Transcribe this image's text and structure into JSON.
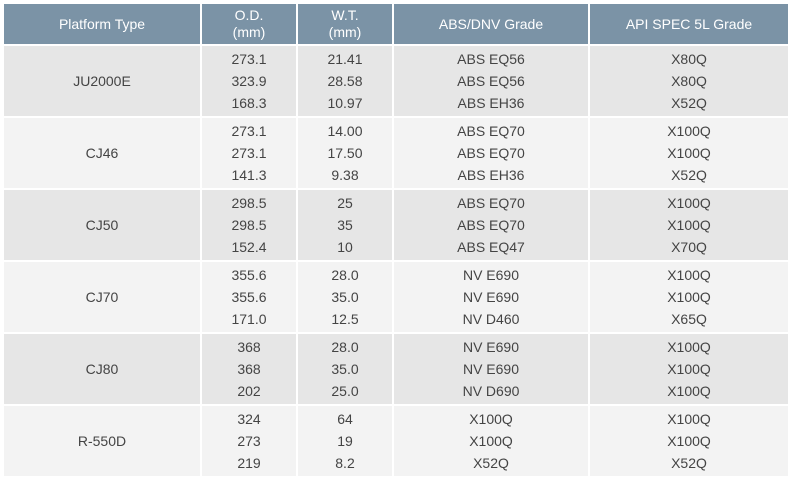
{
  "headers": {
    "platform": "Platform Type",
    "od": [
      "O.D.",
      "(mm)"
    ],
    "wt": [
      "W.T.",
      "(mm)"
    ],
    "abs": "ABS/DNV Grade",
    "api": "API SPEC 5L Grade"
  },
  "groups": [
    {
      "platform": "JU2000E",
      "rows": [
        {
          "od": "273.1",
          "wt": "21.41",
          "abs": "ABS EQ56",
          "api": "X80Q"
        },
        {
          "od": "323.9",
          "wt": "28.58",
          "abs": "ABS EQ56",
          "api": "X80Q"
        },
        {
          "od": "168.3",
          "wt": "10.97",
          "abs": "ABS EH36",
          "api": "X52Q"
        }
      ]
    },
    {
      "platform": "CJ46",
      "rows": [
        {
          "od": "273.1",
          "wt": "14.00",
          "abs": "ABS EQ70",
          "api": "X100Q"
        },
        {
          "od": "273.1",
          "wt": "17.50",
          "abs": "ABS EQ70",
          "api": "X100Q"
        },
        {
          "od": "141.3",
          "wt": "9.38",
          "abs": "ABS EH36",
          "api": "X52Q"
        }
      ]
    },
    {
      "platform": "CJ50",
      "rows": [
        {
          "od": "298.5",
          "wt": "25",
          "abs": "ABS EQ70",
          "api": "X100Q"
        },
        {
          "od": "298.5",
          "wt": "35",
          "abs": "ABS EQ70",
          "api": "X100Q"
        },
        {
          "od": "152.4",
          "wt": "10",
          "abs": "ABS EQ47",
          "api": "X70Q"
        }
      ]
    },
    {
      "platform": "CJ70",
      "rows": [
        {
          "od": "355.6",
          "wt": "28.0",
          "abs": "NV E690",
          "api": "X100Q"
        },
        {
          "od": "355.6",
          "wt": "35.0",
          "abs": "NV E690",
          "api": "X100Q"
        },
        {
          "od": "171.0",
          "wt": "12.5",
          "abs": "NV D460",
          "api": "X65Q"
        }
      ]
    },
    {
      "platform": "CJ80",
      "rows": [
        {
          "od": "368",
          "wt": "28.0",
          "abs": "NV E690",
          "api": "X100Q"
        },
        {
          "od": "368",
          "wt": "35.0",
          "abs": "NV E690",
          "api": "X100Q"
        },
        {
          "od": "202",
          "wt": "25.0",
          "abs": "NV D690",
          "api": "X100Q"
        }
      ]
    },
    {
      "platform": "R-550D",
      "rows": [
        {
          "od": "324",
          "wt": "64",
          "abs": "X100Q",
          "api": "X100Q"
        },
        {
          "od": "273",
          "wt": "19",
          "abs": "X100Q",
          "api": "X100Q"
        },
        {
          "od": "219",
          "wt": "8.2",
          "abs": "X52Q",
          "api": "X52Q"
        }
      ]
    }
  ]
}
